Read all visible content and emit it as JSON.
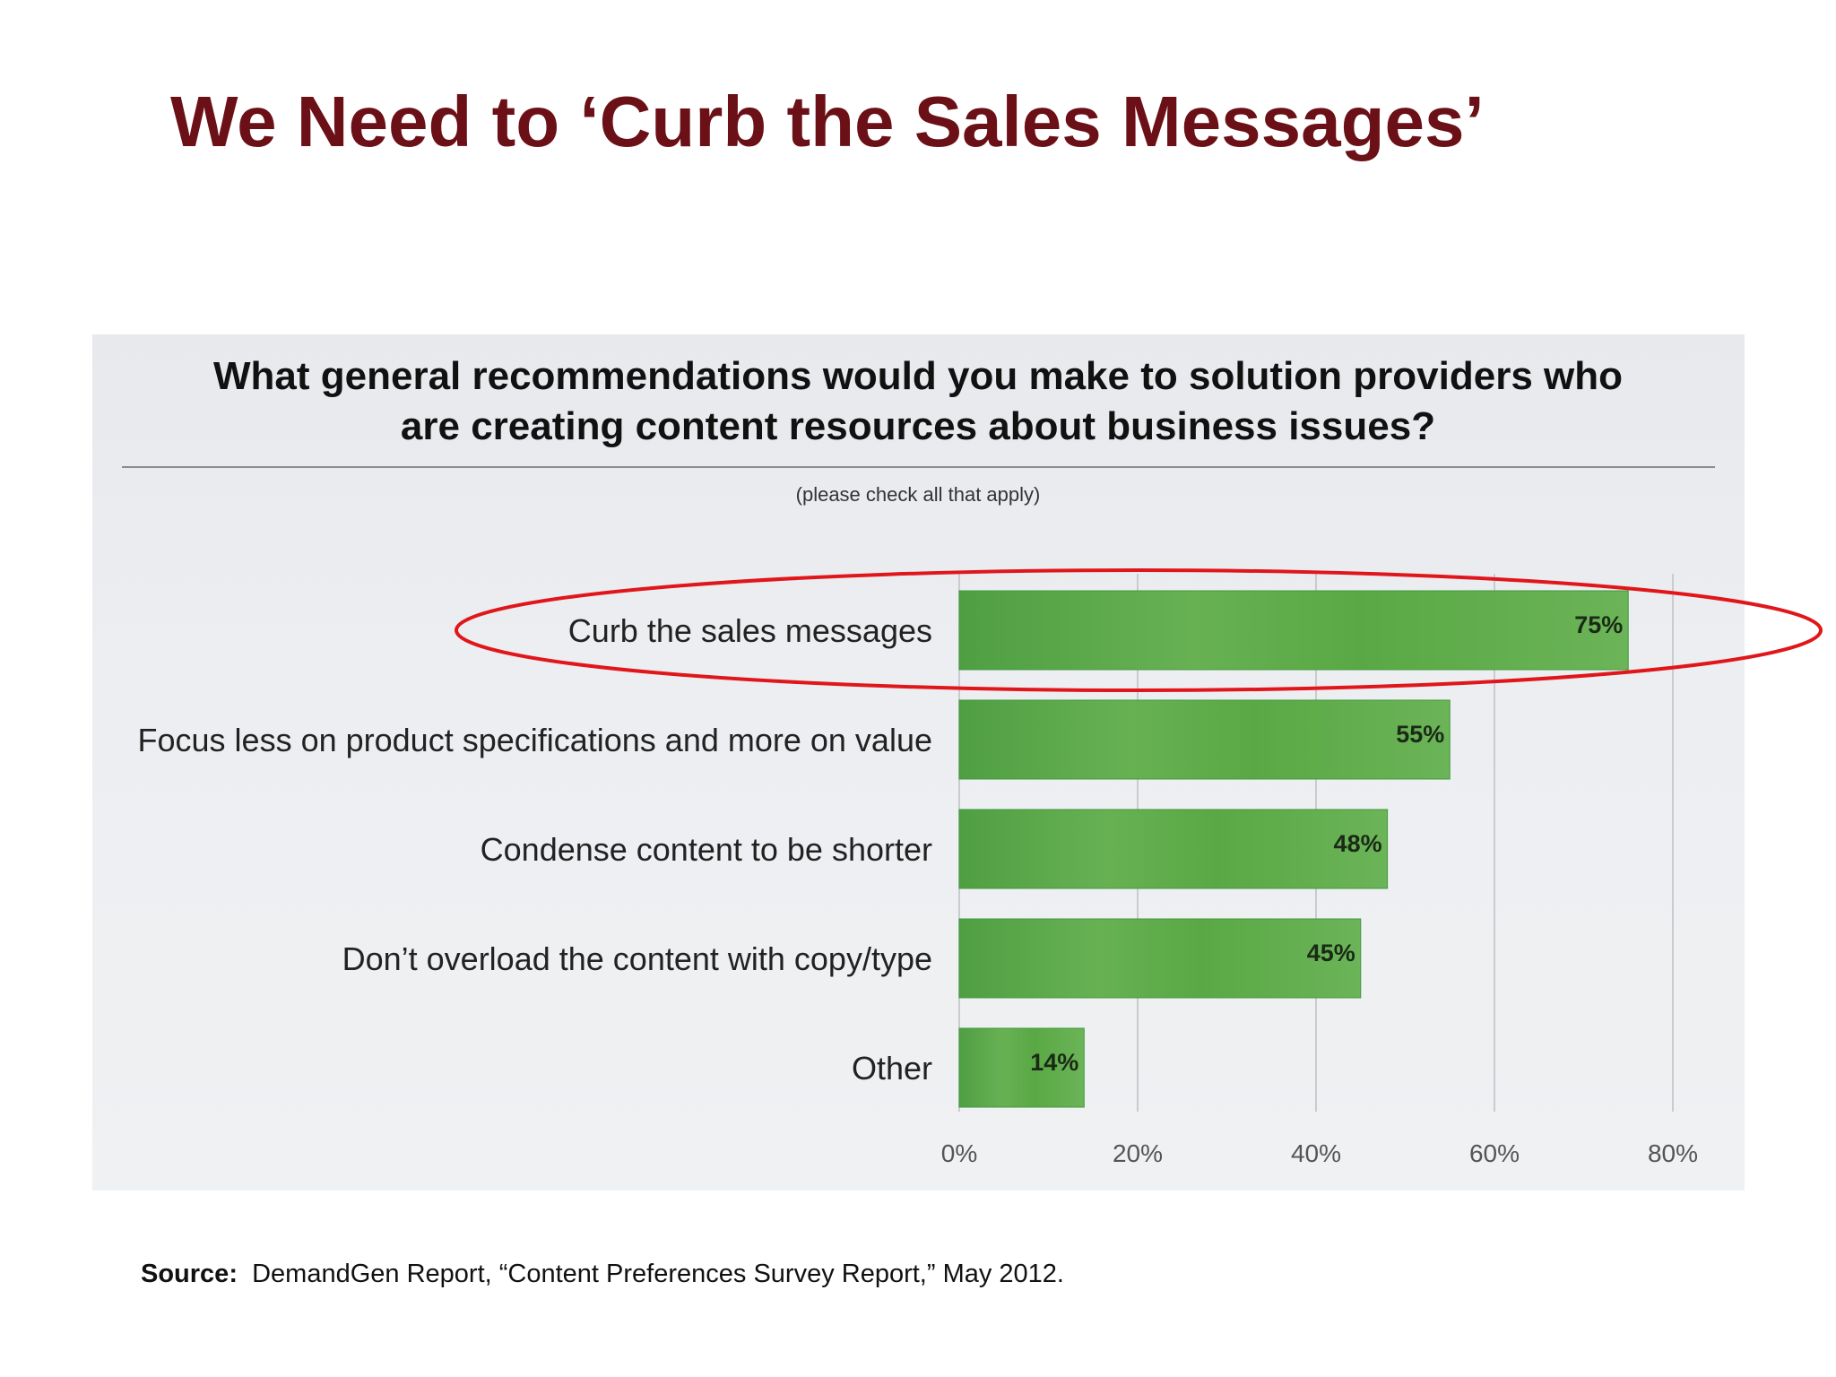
{
  "slide": {
    "title": "We Need to ‘Curb the Sales Messages’"
  },
  "source": {
    "label": "Source:",
    "text": "DemandGen Report, “Content Preferences Survey Report,” May 2012."
  },
  "colors": {
    "title": "#6b1016",
    "bar": "#5aa845",
    "bar_dark": "#3f9a3e",
    "highlight": "#e0161b"
  },
  "chart_data": {
    "type": "bar",
    "orientation": "horizontal",
    "title": "What general recommendations would you make to solution providers who are creating content resources about business issues?",
    "title_lines": [
      "What general recommendations would you make to solution providers who",
      "are creating content resources about business issues?"
    ],
    "subtitle": "(please check all that apply)",
    "categories": [
      "Curb the sales messages",
      "Focus less on product specifications and more on value",
      "Condense content to be shorter",
      "Don’t overload the content with copy/type",
      "Other"
    ],
    "values": [
      75,
      55,
      48,
      45,
      14
    ],
    "data_labels": [
      "75%",
      "55%",
      "48%",
      "45%",
      "14%"
    ],
    "xlim": [
      0,
      80
    ],
    "x_ticks": [
      0,
      20,
      40,
      60,
      80
    ],
    "x_tick_labels": [
      "0%",
      "20%",
      "40%",
      "60%",
      "80%"
    ],
    "unit": "%",
    "grid": true,
    "highlighted_category": "Curb the sales messages"
  }
}
